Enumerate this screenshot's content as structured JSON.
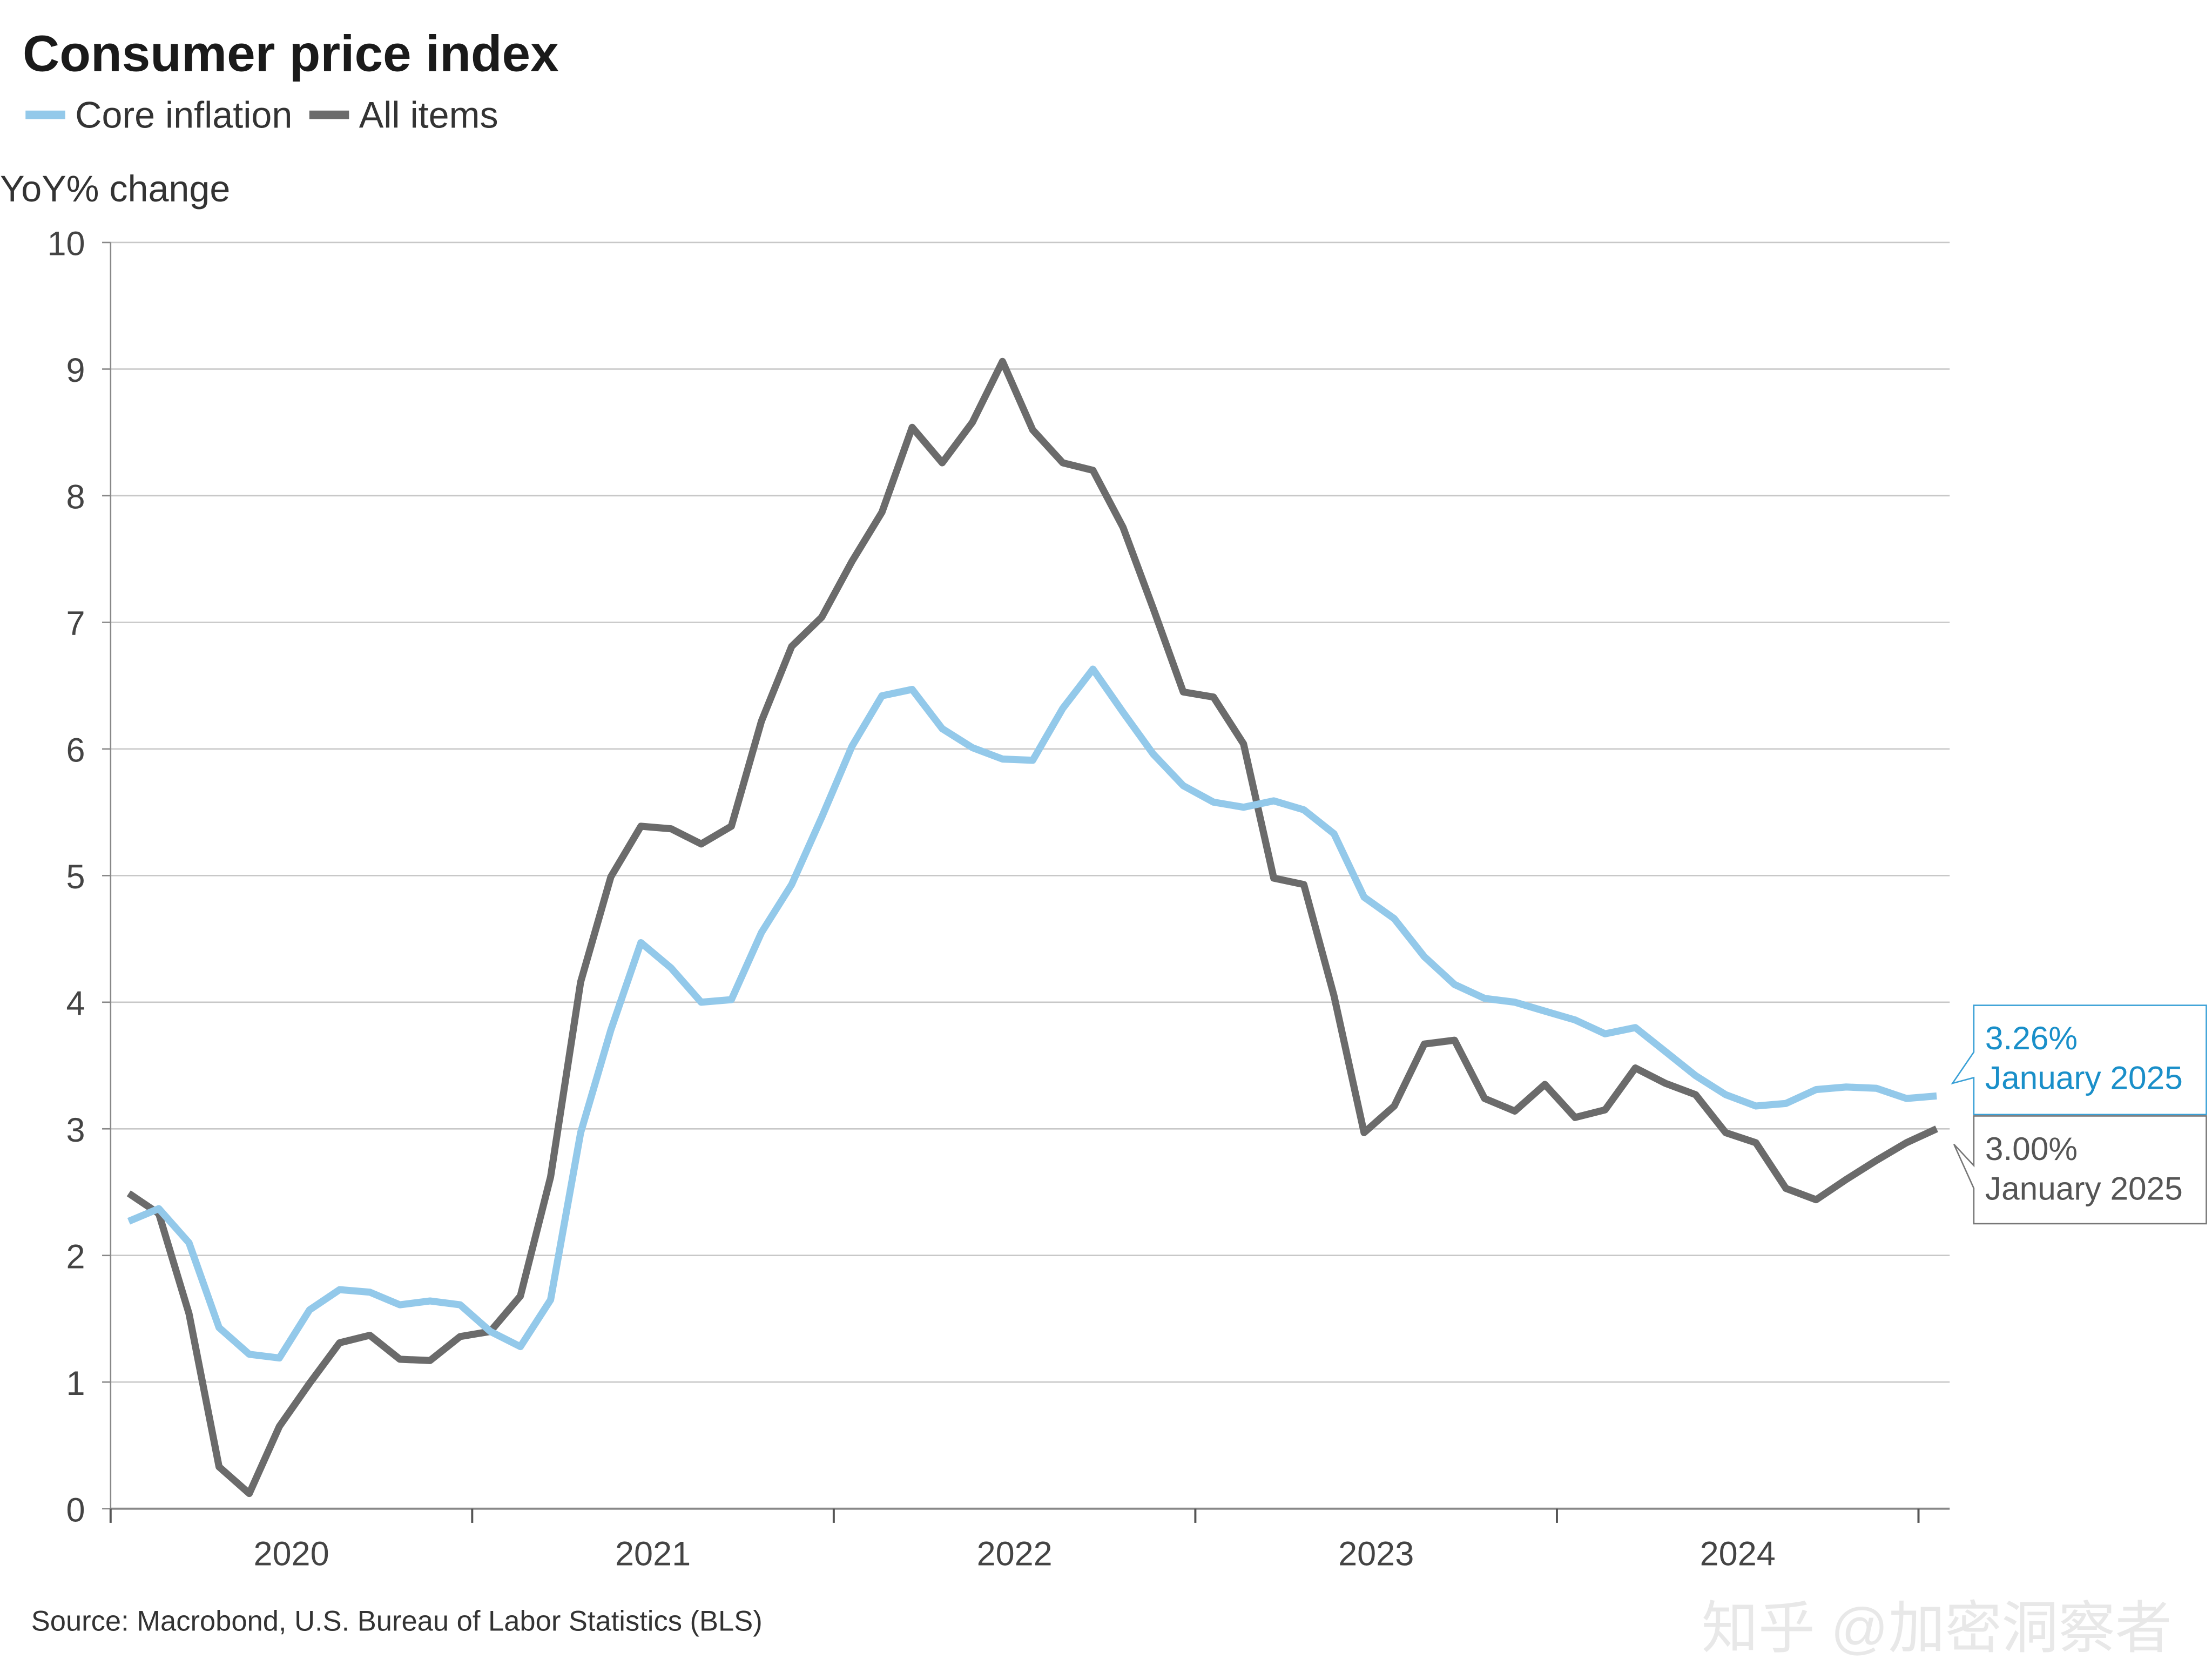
{
  "chart_data": {
    "type": "line",
    "title": "Consumer price index",
    "ylabel": "YoY% change",
    "xlabel": "",
    "ylim": [
      0,
      10
    ],
    "yticks": [
      "0",
      "1",
      "2",
      "3",
      "4",
      "5",
      "6",
      "7",
      "8",
      "9",
      "10"
    ],
    "xtick_labels": [
      "2020",
      "2021",
      "2022",
      "2023",
      "2024"
    ],
    "x_start": "2020-01",
    "x_end": "2025-01",
    "frequency": "monthly",
    "grid": true,
    "legend_position": "top-left",
    "series": [
      {
        "name": "Core inflation",
        "color": "#93c9ea",
        "values": [
          2.27,
          2.37,
          2.1,
          1.43,
          1.22,
          1.19,
          1.57,
          1.73,
          1.71,
          1.61,
          1.64,
          1.61,
          1.4,
          1.28,
          1.65,
          2.97,
          3.78,
          4.47,
          4.27,
          4.0,
          4.02,
          4.55,
          4.93,
          5.46,
          6.02,
          6.42,
          6.47,
          6.16,
          6.01,
          5.92,
          5.91,
          6.32,
          6.63,
          6.29,
          5.96,
          5.71,
          5.58,
          5.54,
          5.59,
          5.52,
          5.33,
          4.83,
          4.66,
          4.36,
          4.14,
          4.03,
          4.0,
          3.93,
          3.86,
          3.75,
          3.8,
          3.61,
          3.42,
          3.27,
          3.18,
          3.2,
          3.31,
          3.33,
          3.32,
          3.24,
          3.26
        ]
      },
      {
        "name": "All items",
        "color": "#6b6b6b",
        "values": [
          2.49,
          2.33,
          1.54,
          0.33,
          0.12,
          0.65,
          0.99,
          1.31,
          1.37,
          1.18,
          1.17,
          1.36,
          1.4,
          1.68,
          2.62,
          4.16,
          4.99,
          5.39,
          5.37,
          5.25,
          5.39,
          6.22,
          6.81,
          7.04,
          7.48,
          7.87,
          8.54,
          8.26,
          8.58,
          9.06,
          8.52,
          8.26,
          8.2,
          7.75,
          7.11,
          6.45,
          6.41,
          6.04,
          4.98,
          4.93,
          4.05,
          2.97,
          3.18,
          3.67,
          3.7,
          3.24,
          3.14,
          3.35,
          3.09,
          3.15,
          3.48,
          3.36,
          3.27,
          2.97,
          2.89,
          2.53,
          2.44,
          2.6,
          2.75,
          2.89,
          3.0
        ]
      }
    ],
    "annotations": [
      {
        "series": "Core inflation",
        "value": "3.26%",
        "date": "January 2025"
      },
      {
        "series": "All items",
        "value": "3.00%",
        "date": "January 2025"
      }
    ],
    "source": "Source: Macrobond, U.S. Bureau of Labor Statistics (BLS)"
  },
  "watermark": "知乎 @加密洞察者"
}
